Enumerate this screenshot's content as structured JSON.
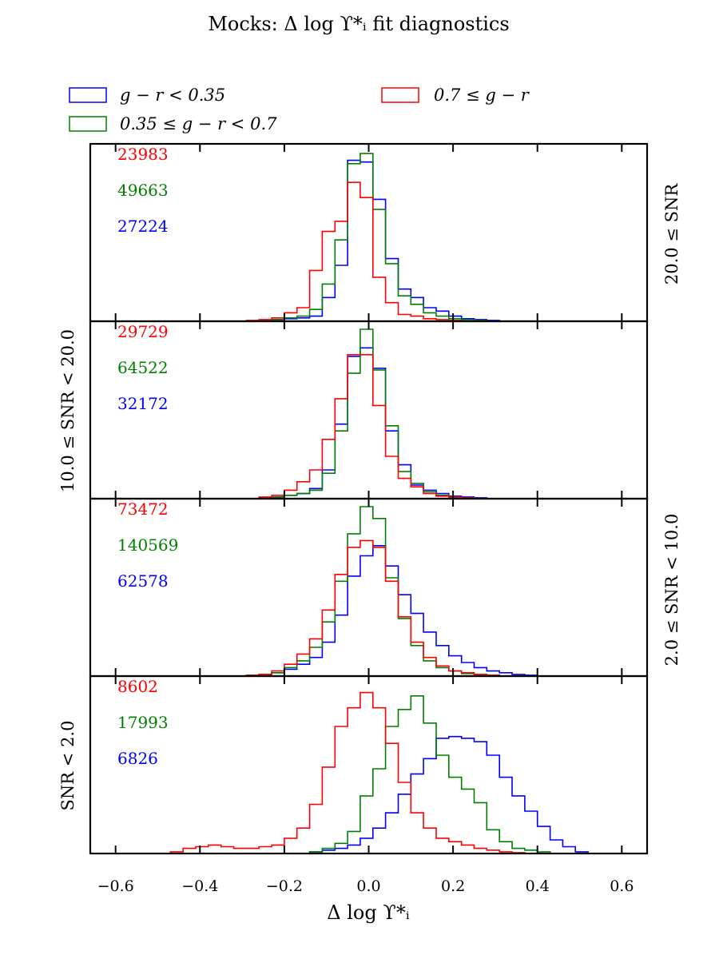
{
  "chart_data": {
    "type": "step-histogram",
    "title": "Mocks: Δ log ϒ*ᵢ fit diagnostics",
    "xlabel": "Δ log ϒ*ᵢ",
    "xlim": [
      -0.66,
      0.66
    ],
    "xticks": [
      -0.6,
      -0.4,
      -0.2,
      0.0,
      0.2,
      0.4,
      0.6
    ],
    "xtick_labels": [
      "−0.6",
      "−0.4",
      "−0.2",
      "0.0",
      "0.2",
      "0.4",
      "0.6"
    ],
    "bin_width": 0.03,
    "bin_start": -0.5,
    "legend": [
      {
        "label": "g − r < 0.35",
        "color": "#0000ff"
      },
      {
        "label": "0.7 ≤ g − r",
        "color": "#ff0000"
      },
      {
        "label": "0.35 ≤ g − r < 0.7",
        "color": "#008000"
      }
    ],
    "side_labels": {
      "right_top": "20.0 ≤ SNR",
      "left_2": "10.0 ≤ SNR < 20.0",
      "right_3": "2.0 ≤ SNR < 10.0",
      "left_4": "SNR < 2.0"
    },
    "panels": [
      {
        "snr_bin": "20.0 ≤ SNR",
        "counts": [
          {
            "value": "23983",
            "color": "#ff0000"
          },
          {
            "value": "49663",
            "color": "#008000"
          },
          {
            "value": "27224",
            "color": "#0000ff"
          }
        ],
        "series": [
          {
            "name": "g − r < 0.35",
            "color": "#0000ff",
            "values": [
              0,
              0,
              0,
              0,
              0,
              0,
              0,
              0,
              0.5,
              1,
              1.5,
              2,
              3,
              14,
              33,
              95,
              94,
              72,
              37,
              19,
              14,
              8,
              6,
              3,
              1.5,
              1,
              0.5,
              0,
              0,
              0,
              0,
              0,
              0,
              0
            ]
          },
          {
            "name": "0.35 ≤ g − r < 0.7",
            "color": "#008000",
            "values": [
              0,
              0,
              0,
              0,
              0,
              0,
              0,
              0,
              0.5,
              1,
              2,
              3,
              7,
              22,
              48,
              93,
              99,
              66,
              34,
              15,
              10,
              5,
              3,
              1.5,
              1,
              0.5,
              0,
              0,
              0,
              0,
              0,
              0,
              0,
              0
            ]
          },
          {
            "name": "0.7 ≤ g − r",
            "color": "#ff0000",
            "values": [
              0,
              0,
              0,
              0,
              0,
              0,
              0,
              0.5,
              1,
              2,
              5,
              8,
              30,
              53,
              59,
              82,
              73,
              26,
              11,
              4,
              3,
              1.5,
              1,
              0.5,
              0,
              0,
              0,
              0,
              0,
              0,
              0,
              0,
              0,
              0
            ]
          }
        ]
      },
      {
        "snr_bin": "10.0 ≤ SNR < 20.0",
        "counts": [
          {
            "value": "29729",
            "color": "#ff0000"
          },
          {
            "value": "64522",
            "color": "#008000"
          },
          {
            "value": "32172",
            "color": "#0000ff"
          }
        ],
        "series": [
          {
            "name": "g − r < 0.35",
            "color": "#0000ff",
            "values": [
              0,
              0,
              0,
              0,
              0,
              0,
              0,
              0,
              0.5,
              1,
              2,
              3,
              6,
              17,
              44,
              84,
              89,
              77,
              40,
              20,
              8,
              5,
              3,
              1.5,
              1,
              0.5,
              0,
              0,
              0,
              0,
              0,
              0,
              0,
              0
            ]
          },
          {
            "name": "0.35 ≤ g − r < 0.7",
            "color": "#008000",
            "values": [
              0,
              0,
              0,
              0,
              0,
              0,
              0,
              0,
              0.5,
              1,
              2,
              3,
              5,
              15,
              40,
              74,
              100,
              76,
              43,
              16,
              9,
              4,
              2,
              1,
              0.5,
              0,
              0,
              0,
              0,
              0,
              0,
              0,
              0,
              0
            ]
          },
          {
            "name": "0.7 ≤ g − r",
            "color": "#ff0000",
            "values": [
              0,
              0,
              0,
              0,
              0,
              0,
              0,
              0,
              1,
              2,
              5,
              10,
              17,
              35,
              59,
              85,
              85,
              55,
              25,
              12,
              7,
              3,
              1.5,
              1,
              0.5,
              0,
              0,
              0,
              0,
              0,
              0,
              0,
              0,
              0
            ]
          }
        ]
      },
      {
        "snr_bin": "2.0 ≤ SNR < 10.0",
        "counts": [
          {
            "value": "73472",
            "color": "#ff0000"
          },
          {
            "value": "140569",
            "color": "#008000"
          },
          {
            "value": "62578",
            "color": "#0000ff"
          }
        ],
        "series": [
          {
            "name": "g − r < 0.35",
            "color": "#0000ff",
            "values": [
              0,
              0,
              0,
              0,
              0,
              0,
              0,
              0.5,
              1,
              2,
              4,
              7,
              11,
              20,
              36,
              59,
              71,
              77,
              65,
              48,
              37,
              26,
              18,
              12,
              8,
              5,
              3,
              2,
              1,
              0.5,
              0,
              0,
              0,
              0
            ]
          },
          {
            "name": "0.35 ≤ g − r < 0.7",
            "color": "#008000",
            "values": [
              0,
              0,
              0,
              0,
              0,
              0,
              0,
              0.5,
              1,
              2,
              5,
              9,
              17,
              32,
              56,
              84,
              100,
              93,
              58,
              34,
              18,
              9,
              5,
              3,
              1.5,
              1,
              0.5,
              0,
              0,
              0,
              0,
              0,
              0,
              0
            ]
          },
          {
            "name": "0.7 ≤ g − r",
            "color": "#ff0000",
            "values": [
              0,
              0,
              0,
              0,
              0,
              0,
              0,
              0.5,
              1,
              3,
              7,
              13,
              22,
              39,
              60,
              76,
              80,
              76,
              56,
              35,
              20,
              11,
              6,
              3,
              2,
              1,
              0.5,
              0,
              0,
              0,
              0,
              0,
              0,
              0
            ]
          }
        ]
      },
      {
        "snr_bin": "SNR < 2.0",
        "counts": [
          {
            "value": "8602",
            "color": "#ff0000"
          },
          {
            "value": "17993",
            "color": "#008000"
          },
          {
            "value": "6826",
            "color": "#0000ff"
          }
        ],
        "series": [
          {
            "name": "g − r < 0.35",
            "color": "#0000ff",
            "values": [
              0,
              0,
              0,
              0,
              0,
              0,
              0,
              0,
              0,
              0,
              0,
              0,
              1,
              2,
              3,
              5,
              9,
              15,
              24,
              35,
              47,
              56,
              68,
              69,
              68,
              66,
              58,
              45,
              34,
              25,
              16,
              8,
              4,
              1
            ]
          },
          {
            "name": "0.35 ≤ g − r < 0.7",
            "color": "#008000",
            "values": [
              0,
              0,
              0,
              0,
              0,
              0,
              0,
              0,
              0,
              0,
              0,
              0,
              1,
              3,
              6,
              13,
              34,
              50,
              75,
              85,
              93,
              77,
              58,
              45,
              38,
              30,
              14,
              7,
              3,
              2,
              1,
              0,
              0,
              0
            ]
          },
          {
            "name": "0.7 ≤ g − r",
            "color": "#ff0000",
            "values": [
              0,
              1,
              3,
              4,
              5,
              4,
              3,
              3,
              4,
              5,
              9,
              15,
              29,
              51,
              75,
              86,
              95,
              86,
              65,
              42,
              24,
              15,
              9,
              7,
              5,
              3,
              2,
              1,
              0.5,
              0,
              0,
              0,
              0,
              0
            ]
          }
        ]
      }
    ]
  }
}
